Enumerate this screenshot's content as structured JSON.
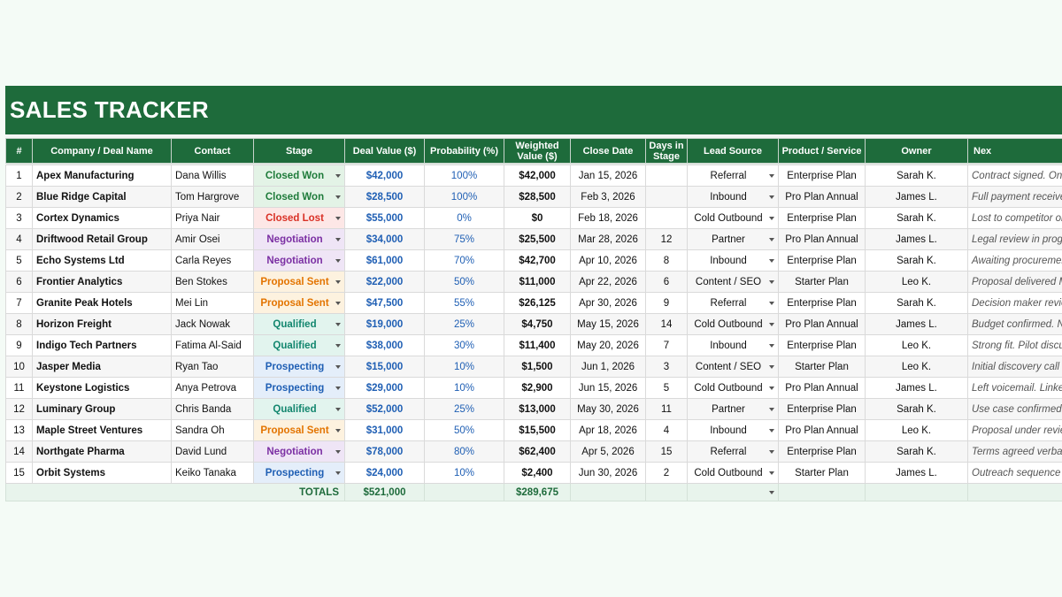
{
  "title": "SALES TRACKER",
  "colors": {
    "header_green": "#1e6b3b",
    "closed_won": "#1e7b3a",
    "closed_lost": "#d93025",
    "negotiation": "#7b2fa3",
    "proposal_sent": "#e37400",
    "qualified": "#12866e",
    "prospecting": "#1f5fb4"
  },
  "stage_styles": {
    "Closed Won": {
      "color": "#1e7b3a",
      "bg": "#e3f3e6"
    },
    "Closed Lost": {
      "color": "#d93025",
      "bg": "#fde7e6"
    },
    "Negotiation": {
      "color": "#7b2fa3",
      "bg": "#efe5f6"
    },
    "Proposal Sent": {
      "color": "#e37400",
      "bg": "#fdf2df"
    },
    "Qualified": {
      "color": "#12866e",
      "bg": "#e2f4ee"
    },
    "Prospecting": {
      "color": "#1f5fb4",
      "bg": "#e4eefa"
    }
  },
  "columns": [
    "#",
    "Company / Deal Name",
    "Contact",
    "Stage",
    "Deal Value ($)",
    "Probability (%)",
    "Weighted Value ($)",
    "Close Date",
    "Days in Stage",
    "Lead Source",
    "Product / Service",
    "Owner",
    "Nex"
  ],
  "rows": [
    {
      "num": "1",
      "company": "Apex Manufacturing",
      "contact": "Dana Willis",
      "stage": "Closed Won",
      "deal_value": "$42,000",
      "probability": "100%",
      "weighted": "$42,000",
      "close_date": "Jan 15, 2026",
      "days": "",
      "lead_source": "Referral",
      "product": "Enterprise Plan",
      "owner": "Sarah K.",
      "notes": "Contract signed. Onb"
    },
    {
      "num": "2",
      "company": "Blue Ridge Capital",
      "contact": "Tom Hargrove",
      "stage": "Closed Won",
      "deal_value": "$28,500",
      "probability": "100%",
      "weighted": "$28,500",
      "close_date": "Feb 3, 2026",
      "days": "",
      "lead_source": "Inbound",
      "product": "Pro Plan Annual",
      "owner": "James L.",
      "notes": "Full payment received"
    },
    {
      "num": "3",
      "company": "Cortex Dynamics",
      "contact": "Priya Nair",
      "stage": "Closed Lost",
      "deal_value": "$55,000",
      "probability": "0%",
      "weighted": "$0",
      "close_date": "Feb 18, 2026",
      "days": "",
      "lead_source": "Cold Outbound",
      "product": "Enterprise Plan",
      "owner": "Sarah K.",
      "notes": "Lost to competitor on"
    },
    {
      "num": "4",
      "company": "Driftwood Retail Group",
      "contact": "Amir Osei",
      "stage": "Negotiation",
      "deal_value": "$34,000",
      "probability": "75%",
      "weighted": "$25,500",
      "close_date": "Mar 28, 2026",
      "days": "12",
      "lead_source": "Partner",
      "product": "Pro Plan Annual",
      "owner": "James L.",
      "notes": "Legal review in progre"
    },
    {
      "num": "5",
      "company": "Echo Systems Ltd",
      "contact": "Carla Reyes",
      "stage": "Negotiation",
      "deal_value": "$61,000",
      "probability": "70%",
      "weighted": "$42,700",
      "close_date": "Apr 10, 2026",
      "days": "8",
      "lead_source": "Inbound",
      "product": "Enterprise Plan",
      "owner": "Sarah K.",
      "notes": "Awaiting procuremen"
    },
    {
      "num": "6",
      "company": "Frontier Analytics",
      "contact": "Ben Stokes",
      "stage": "Proposal Sent",
      "deal_value": "$22,000",
      "probability": "50%",
      "weighted": "$11,000",
      "close_date": "Apr 22, 2026",
      "days": "6",
      "lead_source": "Content / SEO",
      "product": "Starter Plan",
      "owner": "Leo K.",
      "notes": "Proposal delivered M"
    },
    {
      "num": "7",
      "company": "Granite Peak Hotels",
      "contact": "Mei Lin",
      "stage": "Proposal Sent",
      "deal_value": "$47,500",
      "probability": "55%",
      "weighted": "$26,125",
      "close_date": "Apr 30, 2026",
      "days": "9",
      "lead_source": "Referral",
      "product": "Enterprise Plan",
      "owner": "Sarah K.",
      "notes": "Decision maker revie"
    },
    {
      "num": "8",
      "company": "Horizon Freight",
      "contact": "Jack Nowak",
      "stage": "Qualified",
      "deal_value": "$19,000",
      "probability": "25%",
      "weighted": "$4,750",
      "close_date": "May 15, 2026",
      "days": "14",
      "lead_source": "Cold Outbound",
      "product": "Pro Plan Annual",
      "owner": "James L.",
      "notes": "Budget confirmed. Ne"
    },
    {
      "num": "9",
      "company": "Indigo Tech Partners",
      "contact": "Fatima Al-Said",
      "stage": "Qualified",
      "deal_value": "$38,000",
      "probability": "30%",
      "weighted": "$11,400",
      "close_date": "May 20, 2026",
      "days": "7",
      "lead_source": "Inbound",
      "product": "Enterprise Plan",
      "owner": "Leo K.",
      "notes": "Strong fit. Pilot discu"
    },
    {
      "num": "10",
      "company": "Jasper Media",
      "contact": "Ryan Tao",
      "stage": "Prospecting",
      "deal_value": "$15,000",
      "probability": "10%",
      "weighted": "$1,500",
      "close_date": "Jun 1, 2026",
      "days": "3",
      "lead_source": "Content / SEO",
      "product": "Starter Plan",
      "owner": "Leo K.",
      "notes": "Initial discovery call c"
    },
    {
      "num": "11",
      "company": "Keystone Logistics",
      "contact": "Anya Petrova",
      "stage": "Prospecting",
      "deal_value": "$29,000",
      "probability": "10%",
      "weighted": "$2,900",
      "close_date": "Jun 15, 2026",
      "days": "5",
      "lead_source": "Cold Outbound",
      "product": "Pro Plan Annual",
      "owner": "James L.",
      "notes": "Left voicemail. Linked"
    },
    {
      "num": "12",
      "company": "Luminary Group",
      "contact": "Chris Banda",
      "stage": "Qualified",
      "deal_value": "$52,000",
      "probability": "25%",
      "weighted": "$13,000",
      "close_date": "May 30, 2026",
      "days": "11",
      "lead_source": "Partner",
      "product": "Enterprise Plan",
      "owner": "Sarah K.",
      "notes": "Use case confirmed."
    },
    {
      "num": "13",
      "company": "Maple Street Ventures",
      "contact": "Sandra Oh",
      "stage": "Proposal Sent",
      "deal_value": "$31,000",
      "probability": "50%",
      "weighted": "$15,500",
      "close_date": "Apr 18, 2026",
      "days": "4",
      "lead_source": "Inbound",
      "product": "Pro Plan Annual",
      "owner": "Leo K.",
      "notes": "Proposal under revie"
    },
    {
      "num": "14",
      "company": "Northgate Pharma",
      "contact": "David Lund",
      "stage": "Negotiation",
      "deal_value": "$78,000",
      "probability": "80%",
      "weighted": "$62,400",
      "close_date": "Apr 5, 2026",
      "days": "15",
      "lead_source": "Referral",
      "product": "Enterprise Plan",
      "owner": "Sarah K.",
      "notes": "Terms agreed verball"
    },
    {
      "num": "15",
      "company": "Orbit Systems",
      "contact": "Keiko Tanaka",
      "stage": "Prospecting",
      "deal_value": "$24,000",
      "probability": "10%",
      "weighted": "$2,400",
      "close_date": "Jun 30, 2026",
      "days": "2",
      "lead_source": "Cold Outbound",
      "product": "Starter Plan",
      "owner": "James L.",
      "notes": "Outreach sequence s"
    }
  ],
  "totals": {
    "label": "TOTALS",
    "deal_value": "$521,000",
    "weighted": "$289,675"
  }
}
